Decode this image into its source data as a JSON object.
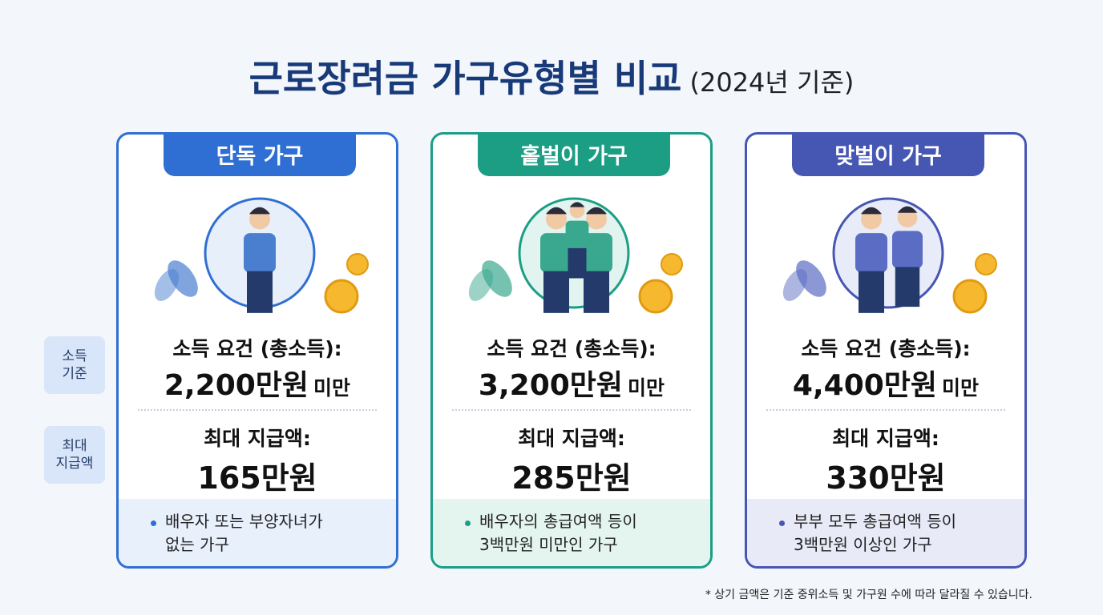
{
  "header": {
    "title": "근로장려금 가구유형별 비교",
    "subtitle": "(2024년 기준)"
  },
  "row_labels": [
    {
      "lines": [
        "소득",
        "기준"
      ]
    },
    {
      "lines": [
        "최대",
        "지급액"
      ]
    }
  ],
  "cards": [
    {
      "title": "단독 가구",
      "income_label": "소득 요건 (총소득):",
      "income_amount": "2,200만원",
      "income_suffix": "미만",
      "payment_label": "최대 지급액:",
      "payment_value": "165만원",
      "note": [
        "배우자 또는 부양자녀가",
        "없는 가구"
      ]
    },
    {
      "title": "홑벌이 가구",
      "income_label": "소득 요건 (총소득):",
      "income_amount": "3,200만원",
      "income_suffix": "미만",
      "payment_label": "최대 지급액:",
      "payment_value": "285만원",
      "note": [
        "배우자의 총급여액 등이",
        "3백만원 미만인 가구"
      ]
    },
    {
      "title": "맞벌이 가구",
      "income_label": "소득 요건 (총소득):",
      "income_amount": "4,400만원",
      "income_suffix": "미만",
      "payment_label": "최대 지급액:",
      "payment_value": "330만원",
      "note": [
        "부부 모두 총급여액 등이",
        "3백만원 이상인 가구"
      ]
    }
  ],
  "footnote": "* 상기 금액은 기준 중위소득 및 가구원 수에 따라 달라질 수 있습니다."
}
